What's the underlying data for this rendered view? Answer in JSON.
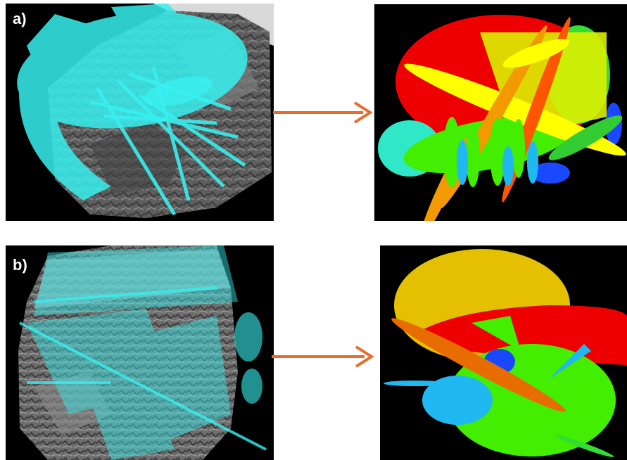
{
  "panels": [
    {
      "label": "a)"
    },
    {
      "label": "b)"
    }
  ],
  "colors": {
    "arrow": "#e86d2c",
    "overlay_cyan": "#38f0f0",
    "rock_gray": "#6b6b6b",
    "background_black": "#000000",
    "red": "#ee0000",
    "yellow": "#ffff00",
    "green": "#44ee00",
    "orange": "#f29a00",
    "blue": "#1a48ff",
    "light_blue": "#1fb8f0",
    "gold": "#e5c000"
  },
  "icons": [
    "right-arrow-icon",
    "right-arrow-icon"
  ]
}
